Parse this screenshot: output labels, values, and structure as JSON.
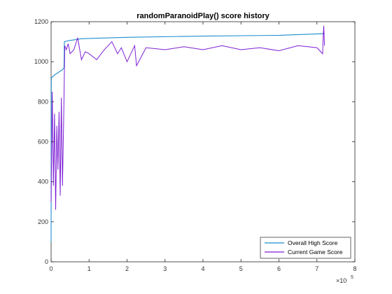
{
  "chart_data": {
    "type": "line",
    "title": "randomParanoidPlay() score history",
    "xlabel": "",
    "ylabel": "",
    "x_exponent_label": "×10",
    "x_exponent": "5",
    "xlim": [
      0,
      800000
    ],
    "ylim": [
      0,
      1200
    ],
    "x_ticks": [
      0,
      100000,
      200000,
      300000,
      400000,
      500000,
      600000,
      700000,
      800000
    ],
    "x_tick_labels": [
      "0",
      "1",
      "2",
      "3",
      "4",
      "5",
      "6",
      "7",
      "8"
    ],
    "y_ticks": [
      0,
      200,
      400,
      600,
      800,
      1000,
      1200
    ],
    "y_tick_labels": [
      "0",
      "200",
      "400",
      "600",
      "800",
      "1000",
      "1200"
    ],
    "grid": false,
    "legend_position": "bottom-right",
    "series": [
      {
        "name": "Overall High Score",
        "color": "#1f8fcf",
        "x": [
          0,
          500,
          1000,
          10000,
          30000,
          34000,
          35000,
          45000,
          80000,
          200000,
          400000,
          600000,
          715000,
          716000,
          720000
        ],
        "y": [
          100,
          900,
          920,
          935,
          960,
          970,
          1100,
          1105,
          1115,
          1122,
          1128,
          1132,
          1140,
          1142,
          1143
        ]
      },
      {
        "name": "Current Game Score",
        "color": "#7e1fd6",
        "x": [
          0,
          3000,
          6000,
          9000,
          12000,
          15000,
          18000,
          21000,
          24000,
          27000,
          30000,
          33000,
          36000,
          40000,
          45000,
          50000,
          60000,
          70000,
          80000,
          90000,
          100000,
          120000,
          140000,
          160000,
          175000,
          185000,
          200000,
          220000,
          225000,
          250000,
          300000,
          350000,
          400000,
          450000,
          500000,
          550000,
          600000,
          650000,
          700000,
          715000,
          716000,
          718000,
          720000
        ],
        "y": [
          300,
          850,
          380,
          740,
          260,
          680,
          460,
          750,
          330,
          820,
          380,
          700,
          1080,
          1060,
          1090,
          1040,
          1060,
          1120,
          1010,
          1050,
          1040,
          1010,
          1060,
          1100,
          1040,
          1070,
          1000,
          1080,
          980,
          1070,
          1060,
          1075,
          1060,
          1080,
          1060,
          1070,
          1055,
          1080,
          1070,
          1040,
          1100,
          1180,
          1080
        ]
      }
    ]
  }
}
